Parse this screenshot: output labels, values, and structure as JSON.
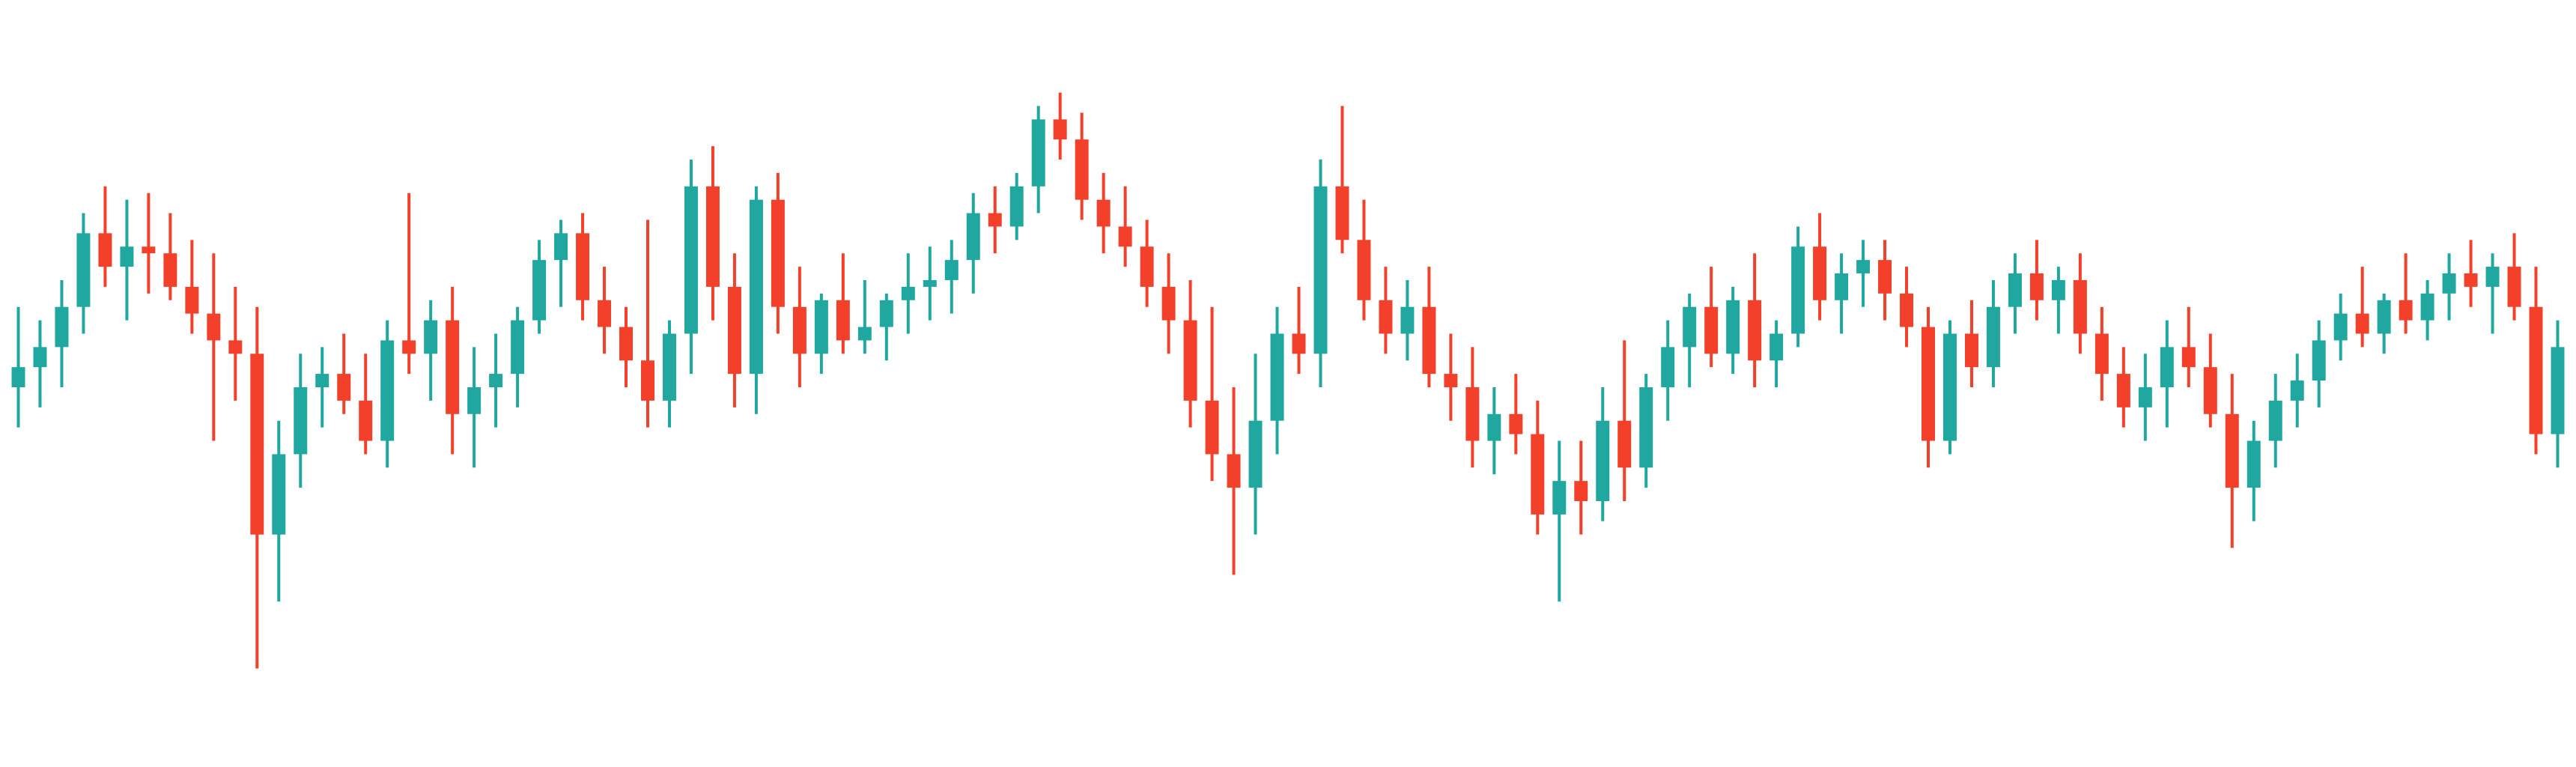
{
  "chart_data": {
    "type": "candlestick",
    "title": "",
    "xlabel": "",
    "ylabel": "",
    "grid": false,
    "legend": "none",
    "axes_visible": false,
    "ylim": [
      0,
      100
    ],
    "colors": {
      "up": "#1fa7a0",
      "down": "#f2402a"
    },
    "candles": [
      {
        "o": 50,
        "h": 62,
        "l": 44,
        "c": 53
      },
      {
        "o": 53,
        "h": 60,
        "l": 47,
        "c": 56
      },
      {
        "o": 56,
        "h": 66,
        "l": 50,
        "c": 62
      },
      {
        "o": 62,
        "h": 76,
        "l": 58,
        "c": 73
      },
      {
        "o": 73,
        "h": 80,
        "l": 65,
        "c": 68
      },
      {
        "o": 68,
        "h": 78,
        "l": 60,
        "c": 71
      },
      {
        "o": 71,
        "h": 79,
        "l": 64,
        "c": 70
      },
      {
        "o": 70,
        "h": 76,
        "l": 63,
        "c": 65
      },
      {
        "o": 65,
        "h": 72,
        "l": 58,
        "c": 61
      },
      {
        "o": 61,
        "h": 70,
        "l": 42,
        "c": 57
      },
      {
        "o": 57,
        "h": 65,
        "l": 48,
        "c": 55
      },
      {
        "o": 55,
        "h": 62,
        "l": 8,
        "c": 28
      },
      {
        "o": 28,
        "h": 45,
        "l": 18,
        "c": 40
      },
      {
        "o": 40,
        "h": 55,
        "l": 35,
        "c": 50
      },
      {
        "o": 50,
        "h": 56,
        "l": 44,
        "c": 52
      },
      {
        "o": 52,
        "h": 58,
        "l": 46,
        "c": 48
      },
      {
        "o": 48,
        "h": 55,
        "l": 40,
        "c": 42
      },
      {
        "o": 42,
        "h": 60,
        "l": 38,
        "c": 57
      },
      {
        "o": 57,
        "h": 79,
        "l": 52,
        "c": 55
      },
      {
        "o": 55,
        "h": 63,
        "l": 48,
        "c": 60
      },
      {
        "o": 60,
        "h": 65,
        "l": 40,
        "c": 46
      },
      {
        "o": 46,
        "h": 56,
        "l": 38,
        "c": 50
      },
      {
        "o": 50,
        "h": 58,
        "l": 44,
        "c": 52
      },
      {
        "o": 52,
        "h": 62,
        "l": 47,
        "c": 60
      },
      {
        "o": 60,
        "h": 72,
        "l": 58,
        "c": 69
      },
      {
        "o": 69,
        "h": 75,
        "l": 62,
        "c": 73
      },
      {
        "o": 73,
        "h": 76,
        "l": 60,
        "c": 63
      },
      {
        "o": 63,
        "h": 68,
        "l": 55,
        "c": 59
      },
      {
        "o": 59,
        "h": 62,
        "l": 50,
        "c": 54
      },
      {
        "o": 54,
        "h": 75,
        "l": 44,
        "c": 48
      },
      {
        "o": 48,
        "h": 60,
        "l": 44,
        "c": 58
      },
      {
        "o": 58,
        "h": 84,
        "l": 52,
        "c": 80
      },
      {
        "o": 80,
        "h": 86,
        "l": 60,
        "c": 65
      },
      {
        "o": 65,
        "h": 70,
        "l": 47,
        "c": 52
      },
      {
        "o": 52,
        "h": 80,
        "l": 46,
        "c": 78
      },
      {
        "o": 78,
        "h": 82,
        "l": 58,
        "c": 62
      },
      {
        "o": 62,
        "h": 68,
        "l": 50,
        "c": 55
      },
      {
        "o": 55,
        "h": 64,
        "l": 52,
        "c": 63
      },
      {
        "o": 63,
        "h": 70,
        "l": 55,
        "c": 57
      },
      {
        "o": 57,
        "h": 66,
        "l": 55,
        "c": 59
      },
      {
        "o": 59,
        "h": 64,
        "l": 54,
        "c": 63
      },
      {
        "o": 63,
        "h": 70,
        "l": 58,
        "c": 65
      },
      {
        "o": 65,
        "h": 71,
        "l": 60,
        "c": 66
      },
      {
        "o": 66,
        "h": 72,
        "l": 61,
        "c": 69
      },
      {
        "o": 69,
        "h": 79,
        "l": 64,
        "c": 76
      },
      {
        "o": 76,
        "h": 80,
        "l": 70,
        "c": 74
      },
      {
        "o": 74,
        "h": 82,
        "l": 72,
        "c": 80
      },
      {
        "o": 80,
        "h": 92,
        "l": 76,
        "c": 90
      },
      {
        "o": 90,
        "h": 94,
        "l": 84,
        "c": 87
      },
      {
        "o": 87,
        "h": 91,
        "l": 75,
        "c": 78
      },
      {
        "o": 78,
        "h": 82,
        "l": 70,
        "c": 74
      },
      {
        "o": 74,
        "h": 80,
        "l": 68,
        "c": 71
      },
      {
        "o": 71,
        "h": 75,
        "l": 62,
        "c": 65
      },
      {
        "o": 65,
        "h": 70,
        "l": 55,
        "c": 60
      },
      {
        "o": 60,
        "h": 66,
        "l": 44,
        "c": 48
      },
      {
        "o": 48,
        "h": 62,
        "l": 36,
        "c": 40
      },
      {
        "o": 40,
        "h": 50,
        "l": 22,
        "c": 35
      },
      {
        "o": 35,
        "h": 55,
        "l": 28,
        "c": 45
      },
      {
        "o": 45,
        "h": 62,
        "l": 40,
        "c": 58
      },
      {
        "o": 58,
        "h": 65,
        "l": 52,
        "c": 55
      },
      {
        "o": 55,
        "h": 84,
        "l": 50,
        "c": 80
      },
      {
        "o": 80,
        "h": 92,
        "l": 70,
        "c": 72
      },
      {
        "o": 72,
        "h": 78,
        "l": 60,
        "c": 63
      },
      {
        "o": 63,
        "h": 68,
        "l": 55,
        "c": 58
      },
      {
        "o": 58,
        "h": 66,
        "l": 54,
        "c": 62
      },
      {
        "o": 62,
        "h": 68,
        "l": 50,
        "c": 52
      },
      {
        "o": 52,
        "h": 58,
        "l": 45,
        "c": 50
      },
      {
        "o": 50,
        "h": 56,
        "l": 38,
        "c": 42
      },
      {
        "o": 42,
        "h": 50,
        "l": 37,
        "c": 46
      },
      {
        "o": 46,
        "h": 52,
        "l": 40,
        "c": 43
      },
      {
        "o": 43,
        "h": 48,
        "l": 28,
        "c": 31
      },
      {
        "o": 31,
        "h": 42,
        "l": 18,
        "c": 36
      },
      {
        "o": 36,
        "h": 42,
        "l": 28,
        "c": 33
      },
      {
        "o": 33,
        "h": 50,
        "l": 30,
        "c": 45
      },
      {
        "o": 45,
        "h": 57,
        "l": 33,
        "c": 38
      },
      {
        "o": 38,
        "h": 52,
        "l": 35,
        "c": 50
      },
      {
        "o": 50,
        "h": 60,
        "l": 45,
        "c": 56
      },
      {
        "o": 56,
        "h": 64,
        "l": 50,
        "c": 62
      },
      {
        "o": 62,
        "h": 68,
        "l": 53,
        "c": 55
      },
      {
        "o": 55,
        "h": 65,
        "l": 52,
        "c": 63
      },
      {
        "o": 63,
        "h": 70,
        "l": 50,
        "c": 54
      },
      {
        "o": 54,
        "h": 60,
        "l": 50,
        "c": 58
      },
      {
        "o": 58,
        "h": 74,
        "l": 56,
        "c": 71
      },
      {
        "o": 71,
        "h": 76,
        "l": 60,
        "c": 63
      },
      {
        "o": 63,
        "h": 70,
        "l": 58,
        "c": 67
      },
      {
        "o": 67,
        "h": 72,
        "l": 62,
        "c": 69
      },
      {
        "o": 69,
        "h": 72,
        "l": 60,
        "c": 64
      },
      {
        "o": 64,
        "h": 68,
        "l": 56,
        "c": 59
      },
      {
        "o": 59,
        "h": 62,
        "l": 38,
        "c": 42
      },
      {
        "o": 42,
        "h": 60,
        "l": 40,
        "c": 58
      },
      {
        "o": 58,
        "h": 63,
        "l": 50,
        "c": 53
      },
      {
        "o": 53,
        "h": 66,
        "l": 50,
        "c": 62
      },
      {
        "o": 62,
        "h": 70,
        "l": 58,
        "c": 67
      },
      {
        "o": 67,
        "h": 72,
        "l": 60,
        "c": 63
      },
      {
        "o": 63,
        "h": 68,
        "l": 58,
        "c": 66
      },
      {
        "o": 66,
        "h": 70,
        "l": 55,
        "c": 58
      },
      {
        "o": 58,
        "h": 62,
        "l": 48,
        "c": 52
      },
      {
        "o": 52,
        "h": 56,
        "l": 44,
        "c": 47
      },
      {
        "o": 47,
        "h": 55,
        "l": 42,
        "c": 50
      },
      {
        "o": 50,
        "h": 60,
        "l": 44,
        "c": 56
      },
      {
        "o": 56,
        "h": 62,
        "l": 50,
        "c": 53
      },
      {
        "o": 53,
        "h": 58,
        "l": 44,
        "c": 46
      },
      {
        "o": 46,
        "h": 52,
        "l": 26,
        "c": 35
      },
      {
        "o": 35,
        "h": 45,
        "l": 30,
        "c": 42
      },
      {
        "o": 42,
        "h": 52,
        "l": 38,
        "c": 48
      },
      {
        "o": 48,
        "h": 55,
        "l": 44,
        "c": 51
      },
      {
        "o": 51,
        "h": 60,
        "l": 47,
        "c": 57
      },
      {
        "o": 57,
        "h": 64,
        "l": 54,
        "c": 61
      },
      {
        "o": 61,
        "h": 68,
        "l": 56,
        "c": 58
      },
      {
        "o": 58,
        "h": 64,
        "l": 55,
        "c": 63
      },
      {
        "o": 63,
        "h": 70,
        "l": 58,
        "c": 60
      },
      {
        "o": 60,
        "h": 66,
        "l": 57,
        "c": 64
      },
      {
        "o": 64,
        "h": 70,
        "l": 60,
        "c": 67
      },
      {
        "o": 67,
        "h": 72,
        "l": 62,
        "c": 65
      },
      {
        "o": 65,
        "h": 70,
        "l": 58,
        "c": 68
      },
      {
        "o": 68,
        "h": 73,
        "l": 60,
        "c": 62
      },
      {
        "o": 62,
        "h": 68,
        "l": 40,
        "c": 43
      },
      {
        "o": 43,
        "h": 60,
        "l": 38,
        "c": 56
      }
    ]
  }
}
